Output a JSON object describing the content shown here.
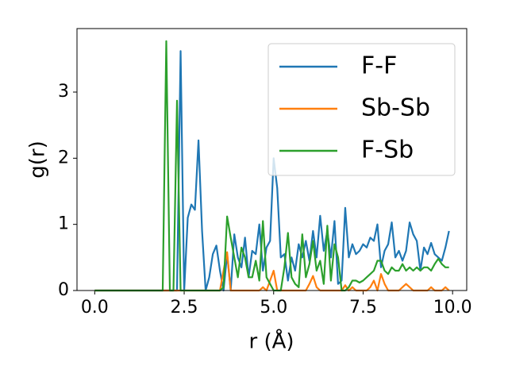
{
  "chart_data": {
    "type": "line",
    "xlabel": "r (Å)",
    "ylabel": "g(r)",
    "x": [
      0.0,
      0.1,
      0.2,
      0.3,
      0.4,
      0.5,
      0.6,
      0.7,
      0.8,
      0.9,
      1.0,
      1.1,
      1.2,
      1.3,
      1.4,
      1.5,
      1.6,
      1.7,
      1.8,
      1.9,
      2.0,
      2.1,
      2.2,
      2.3,
      2.4,
      2.5,
      2.6,
      2.7,
      2.8,
      2.9,
      3.0,
      3.1,
      3.2,
      3.3,
      3.4,
      3.5,
      3.6,
      3.7,
      3.8,
      3.9,
      4.0,
      4.1,
      4.2,
      4.3,
      4.4,
      4.5,
      4.6,
      4.7,
      4.8,
      4.9,
      5.0,
      5.1,
      5.2,
      5.3,
      5.4,
      5.5,
      5.6,
      5.7,
      5.8,
      5.9,
      6.0,
      6.1,
      6.2,
      6.3,
      6.4,
      6.5,
      6.6,
      6.7,
      6.8,
      6.9,
      7.0,
      7.1,
      7.2,
      7.3,
      7.4,
      7.5,
      7.6,
      7.7,
      7.8,
      7.9,
      8.0,
      8.1,
      8.2,
      8.3,
      8.4,
      8.5,
      8.6,
      8.7,
      8.8,
      8.9,
      9.0,
      9.1,
      9.2,
      9.3,
      9.4,
      9.5,
      9.6,
      9.7,
      9.8,
      9.9
    ],
    "series": [
      {
        "name": "F-F",
        "color": "#1f77b4",
        "values": [
          0,
          0,
          0,
          0,
          0,
          0,
          0,
          0,
          0,
          0,
          0,
          0,
          0,
          0,
          0,
          0,
          0,
          0,
          0,
          0,
          0,
          0,
          0,
          0,
          3.62,
          0,
          1.1,
          1.3,
          1.22,
          2.27,
          0.9,
          0,
          0.2,
          0.55,
          0.68,
          0.3,
          0,
          0.55,
          0,
          0.85,
          0.5,
          0.35,
          0.8,
          0.2,
          0.6,
          0.55,
          1.0,
          0.3,
          0.65,
          0.75,
          2.0,
          1.55,
          0.5,
          0.55,
          0.15,
          0.5,
          0.3,
          0.7,
          0.5,
          0.75,
          0.45,
          0.9,
          0.5,
          1.13,
          0.6,
          0.9,
          0.5,
          1.05,
          0.1,
          0.15,
          1.25,
          0.5,
          0.7,
          0.55,
          0.6,
          0.7,
          0.65,
          0.8,
          0.75,
          1.0,
          0.35,
          0.6,
          0.7,
          1.03,
          0.5,
          0.6,
          0.45,
          0.6,
          1.03,
          0.85,
          0.75,
          0.3,
          0.65,
          0.55,
          0.72,
          0.55,
          0.5,
          0.45,
          0.65,
          0.9
        ]
      },
      {
        "name": "Sb-Sb",
        "color": "#ff7f0e",
        "values": [
          0,
          0,
          0,
          0,
          0,
          0,
          0,
          0,
          0,
          0,
          0,
          0,
          0,
          0,
          0,
          0,
          0,
          0,
          0,
          0,
          0,
          0,
          0,
          0,
          0,
          0,
          0,
          0,
          0,
          0,
          0,
          0,
          0,
          0,
          0,
          0,
          0.3,
          0.58,
          0,
          0,
          0,
          0,
          0,
          0,
          0,
          0,
          0,
          0.05,
          0,
          0.15,
          0.3,
          0,
          0,
          0,
          0,
          0,
          0,
          0,
          0,
          0,
          0.1,
          0.22,
          0.05,
          0,
          0,
          0,
          0,
          0,
          0,
          0,
          0.08,
          0,
          0.05,
          0,
          0,
          0,
          0,
          0.05,
          0.15,
          0,
          0.25,
          0.1,
          0,
          0,
          0,
          0,
          0.05,
          0.1,
          0.05,
          0,
          0,
          0,
          0,
          0,
          0.05,
          0,
          0,
          0,
          0.05,
          0
        ]
      },
      {
        "name": "F-Sb",
        "color": "#2ca02c",
        "values": [
          0,
          0,
          0,
          0,
          0,
          0,
          0,
          0,
          0,
          0,
          0,
          0,
          0,
          0,
          0,
          0,
          0,
          0,
          0,
          0,
          3.77,
          0,
          0,
          2.87,
          0,
          0,
          0,
          0,
          0,
          0,
          0,
          0,
          0,
          0,
          0,
          0,
          0.05,
          1.12,
          0.8,
          0.5,
          0.2,
          0.65,
          0.5,
          0.2,
          0.2,
          0.45,
          0.15,
          1.05,
          0.2,
          0.1,
          0,
          0,
          0,
          0.35,
          0.87,
          0.2,
          0.1,
          0.05,
          0.85,
          0.2,
          0.4,
          0.75,
          0.3,
          0.45,
          0.1,
          0.98,
          0.15,
          0.7,
          0.5,
          0,
          0,
          0.05,
          0.15,
          0.15,
          0.12,
          0.15,
          0.2,
          0.25,
          0.3,
          0.45,
          0.45,
          0.3,
          0.25,
          0.35,
          0.3,
          0.3,
          0.4,
          0.3,
          0.35,
          0.3,
          0.35,
          0.3,
          0.35,
          0.35,
          0.3,
          0.4,
          0.48,
          0.4,
          0.35,
          0.35
        ]
      }
    ],
    "xlim": [
      -0.495,
      10.395
    ],
    "xticks": [
      {
        "value": 0,
        "label": "0.0"
      },
      {
        "value": 2.5,
        "label": "2.5"
      },
      {
        "value": 5,
        "label": "5.0"
      },
      {
        "value": 7.5,
        "label": "7.5"
      },
      {
        "value": 10,
        "label": "10.0"
      }
    ],
    "ylim": [
      0,
      3.96
    ],
    "yticks": [
      0,
      1,
      2,
      3
    ],
    "legend": "upper right"
  }
}
